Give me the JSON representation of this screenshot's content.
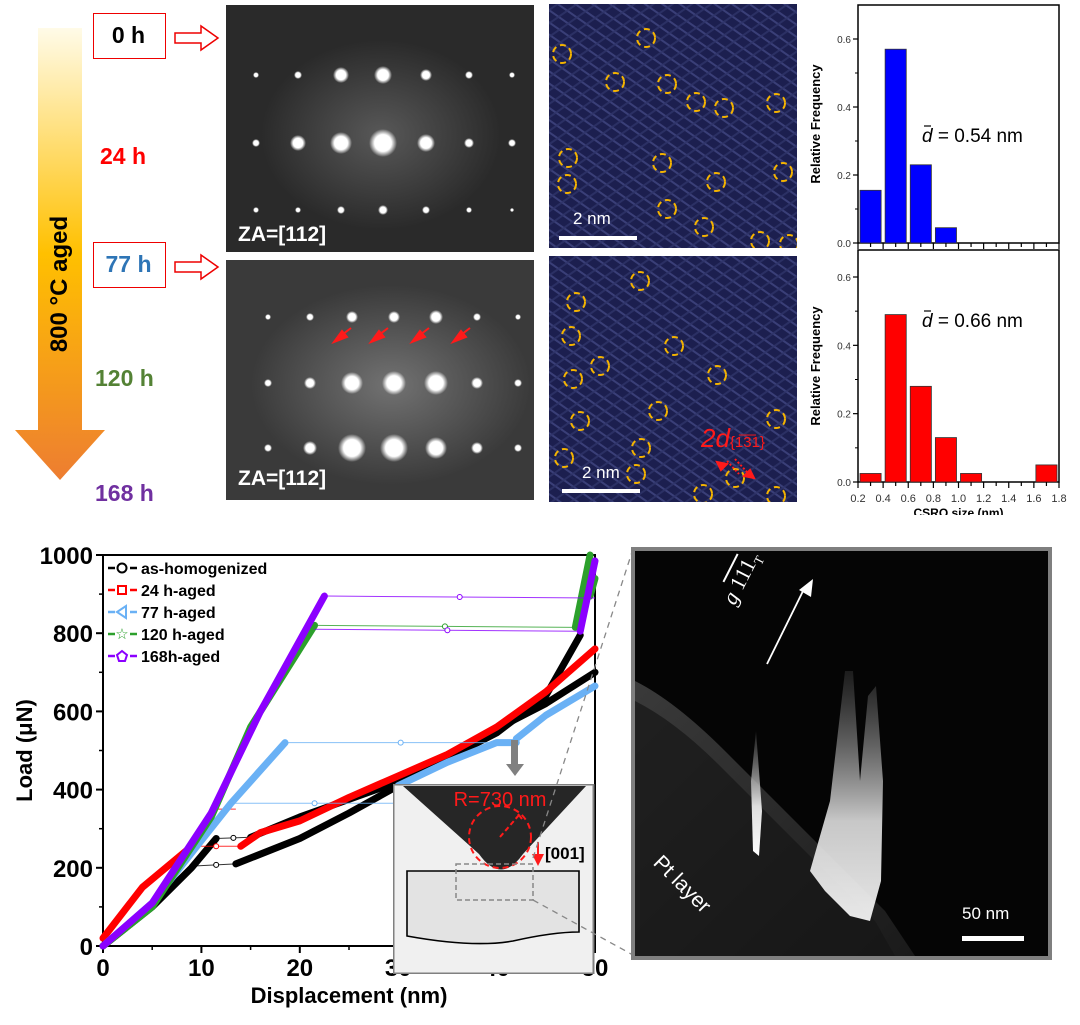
{
  "figure": {
    "aging_arrow": {
      "label": "800 °C aged",
      "gradient_top": "#fffbe8",
      "gradient_mid": "#ffc000",
      "gradient_bottom": "#ed7d31"
    },
    "time_points": [
      {
        "label": "0 h",
        "color": "#000000",
        "boxed": true
      },
      {
        "label": "24 h",
        "color": "#ff0000",
        "boxed": false
      },
      {
        "label": "77 h",
        "color": "#2e75b6",
        "boxed": true
      },
      {
        "label": "120 h",
        "color": "#548235",
        "boxed": false
      },
      {
        "label": "168 h",
        "color": "#7030a0",
        "boxed": false
      }
    ],
    "saed_panels": [
      {
        "condition": "0 h",
        "zone_axis": "ZA=[112]"
      },
      {
        "condition": "77 h",
        "zone_axis": "ZA=[112]",
        "annotation": "4 red arrows marking superlattice diffuse intensity"
      }
    ],
    "hrtem_panels": [
      {
        "condition": "0 h",
        "scale_bar": "2 nm"
      },
      {
        "condition": "77 h",
        "scale_bar": "2 nm",
        "annotation": "2d",
        "annotation_sub": "{1̅3̅1}",
        "annotation_sub_text": "{131}"
      }
    ],
    "tem_panel": {
      "g_vector_label": "g",
      "g_vector_index": "111",
      "g_vector_sub": "T",
      "layer_label": "Pt layer",
      "scale_bar": "50 nm"
    },
    "inset": {
      "radius_label": "R=730 nm",
      "direction_label": "[001]"
    }
  },
  "chart_data": [
    {
      "type": "bar",
      "title": "",
      "xlabel": "CSRO size (nm)",
      "ylabel": "Relative Frequency",
      "xlim": [
        0.2,
        1.8
      ],
      "ylim": [
        0,
        0.7
      ],
      "yticks": [
        "0.0",
        "0.2",
        "0.4",
        "0.6"
      ],
      "bin_edges": [
        0.2,
        0.4,
        0.6,
        0.8,
        1.0,
        1.2,
        1.4,
        1.6,
        1.8
      ],
      "values": [
        0.155,
        0.57,
        0.23,
        0.045,
        0,
        0,
        0,
        0
      ],
      "color": "#0000ff",
      "annotation": "d̄ = 0.54 nm",
      "annotation_symbol": "d",
      "annotation_text": " = 0.54 nm",
      "condition": "0 h"
    },
    {
      "type": "bar",
      "title": "",
      "xlabel": "CSRO size (nm)",
      "ylabel": "Relative Frequency",
      "xlim": [
        0.2,
        1.8
      ],
      "ylim": [
        0,
        0.7
      ],
      "yticks": [
        "0.0",
        "0.2",
        "0.4",
        "0.6"
      ],
      "xticks": [
        "0.2",
        "0.4",
        "0.6",
        "0.8",
        "1.0",
        "1.2",
        "1.4",
        "1.6",
        "1.8"
      ],
      "bin_edges": [
        0.2,
        0.4,
        0.6,
        0.8,
        1.0,
        1.2,
        1.4,
        1.6,
        1.8
      ],
      "values": [
        0.025,
        0.49,
        0.28,
        0.13,
        0.025,
        0,
        0,
        0.05
      ],
      "color": "#ff0000",
      "annotation": "d̄ = 0.66 nm",
      "annotation_symbol": "d",
      "annotation_text": " = 0.66 nm",
      "condition": "77 h"
    },
    {
      "type": "line",
      "title": "",
      "xlabel": "Displacement (nm)",
      "ylabel": "Load (μN)",
      "xlim": [
        0,
        50
      ],
      "ylim": [
        0,
        1000
      ],
      "xticks": [
        "0",
        "10",
        "20",
        "30",
        "40",
        "50"
      ],
      "yticks": [
        "0",
        "200",
        "400",
        "600",
        "800",
        "1000"
      ],
      "grid": false,
      "legend_position": "top-left",
      "series": [
        {
          "name": "as-homogenized",
          "color": "#000000",
          "marker": "circle",
          "segments": [
            {
              "x": [
                0,
                5,
                9,
                11.5
              ],
              "y": [
                0,
                100,
                200,
                275
              ]
            },
            {
              "x": [
                11.5,
                15
              ],
              "y": [
                275,
                278
              ],
              "jump": true
            },
            {
              "x": [
                15,
                20,
                25,
                30,
                35,
                40,
                45,
                48.5
              ],
              "y": [
                278,
                330,
                375,
                420,
                480,
                545,
                640,
                795
              ]
            },
            {
              "x": [
                9.5,
                13.5
              ],
              "y": [
                205,
                210
              ],
              "jump": true
            },
            {
              "x": [
                13.5,
                20,
                25,
                30,
                35,
                40,
                45,
                50
              ],
              "y": [
                210,
                275,
                340,
                410,
                480,
                555,
                620,
                700
              ]
            }
          ]
        },
        {
          "name": "24 h-aged",
          "color": "#ff0000",
          "marker": "square",
          "segments": [
            {
              "x": [
                0,
                4,
                9
              ],
              "y": [
                20,
                150,
                255
              ]
            },
            {
              "x": [
                9,
                14
              ],
              "y": [
                255,
                255
              ],
              "jump": true
            },
            {
              "x": [
                11.5,
                13.5
              ],
              "y": [
                350,
                350
              ],
              "jump": true
            },
            {
              "x": [
                14,
                16,
                20,
                25,
                30,
                35,
                40,
                45,
                50
              ],
              "y": [
                255,
                290,
                320,
                380,
                435,
                490,
                560,
                650,
                760
              ]
            }
          ]
        },
        {
          "name": "77 h-aged",
          "color": "#6ab1f5",
          "marker": "triangle-left",
          "segments": [
            {
              "x": [
                0,
                5,
                10,
                13,
                18.5
              ],
              "y": [
                0,
                110,
                270,
                365,
                520
              ]
            },
            {
              "x": [
                18.5,
                42
              ],
              "y": [
                520,
                520
              ],
              "jump": true
            },
            {
              "x": [
                13,
                30
              ],
              "y": [
                365,
                365
              ],
              "jump": true
            },
            {
              "x": [
                30,
                35,
                40,
                42
              ],
              "y": [
                410,
                470,
                520,
                520
              ]
            },
            {
              "x": [
                42,
                45,
                50
              ],
              "y": [
                530,
                590,
                665
              ]
            }
          ]
        },
        {
          "name": "120 h-aged",
          "color": "#2ca02c",
          "marker": "star",
          "segments": [
            {
              "x": [
                0,
                5,
                11,
                15,
                21.5
              ],
              "y": [
                0,
                100,
                330,
                560,
                820
              ]
            },
            {
              "x": [
                21.5,
                48
              ],
              "y": [
                820,
                815
              ],
              "jump": true
            },
            {
              "x": [
                48,
                49.5
              ],
              "y": [
                815,
                1000
              ]
            },
            {
              "x": [
                49.5,
                50
              ],
              "y": [
                895,
                940
              ]
            }
          ]
        },
        {
          "name": "168h-aged",
          "color": "#8b00ff",
          "marker": "pentagon",
          "segments": [
            {
              "x": [
                0,
                5,
                11,
                16,
                22.5
              ],
              "y": [
                0,
                110,
                340,
                600,
                895
              ]
            },
            {
              "x": [
                22.5,
                50
              ],
              "y": [
                895,
                890
              ],
              "jump": true
            },
            {
              "x": [
                21.5,
                48.5
              ],
              "y": [
                810,
                805
              ],
              "jump": true
            },
            {
              "x": [
                48.5,
                50
              ],
              "y": [
                805,
                985
              ]
            }
          ]
        }
      ]
    }
  ]
}
